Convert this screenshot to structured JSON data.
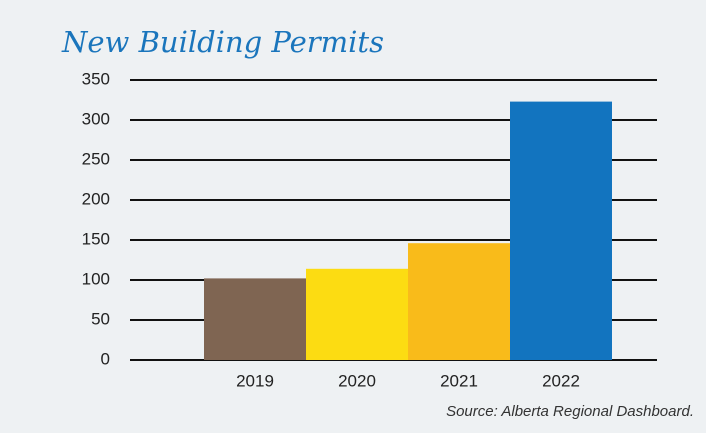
{
  "chart_data": {
    "type": "bar",
    "title": "New Building Permits",
    "categories": [
      "2019",
      "2020",
      "2021",
      "2022"
    ],
    "values": [
      102,
      114,
      146,
      323
    ],
    "colors": [
      "#7f6552",
      "#fcdc12",
      "#f9bb1a",
      "#1274bf"
    ],
    "ylim": [
      0,
      350
    ],
    "yticks": [
      0,
      50,
      100,
      150,
      200,
      250,
      300,
      350
    ],
    "grid": true,
    "source": "Source: Alberta Regional Dashboard."
  }
}
